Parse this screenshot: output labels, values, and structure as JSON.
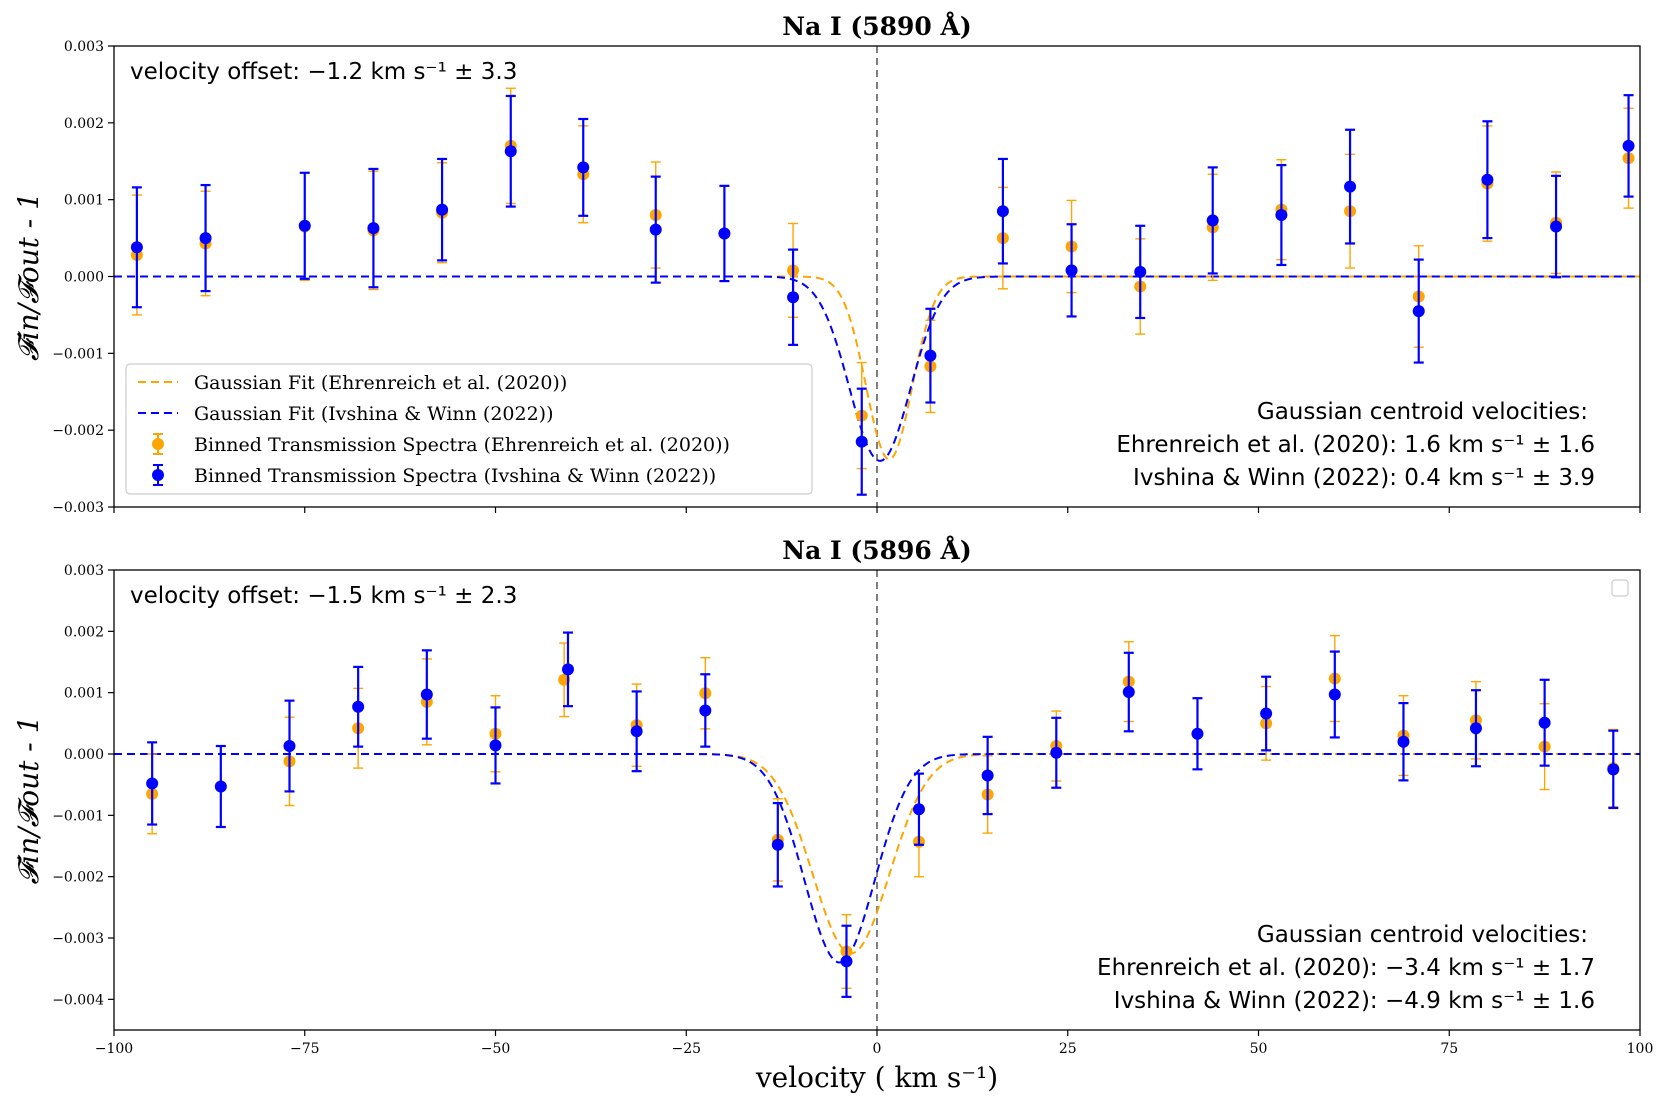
{
  "chart_data": [
    {
      "type": "scatter",
      "title": "Na I (5890 Å)",
      "xlabel": "velocity ( km s⁻¹)",
      "ylabel": "𝓕in/𝓕out - 1",
      "xlim": [
        -100,
        100
      ],
      "ylim": [
        -0.003,
        0.003
      ],
      "yticks": [
        0.003,
        0.002,
        0.001,
        0.0,
        -0.001,
        -0.002,
        -0.003
      ],
      "ytick_labels": [
        "0.003",
        "0.002",
        "0.001",
        "0.000",
        "−0.001",
        "−0.002",
        "−0.003"
      ],
      "xticks": [
        -100,
        -75,
        -50,
        -25,
        0,
        25,
        50,
        75,
        100
      ],
      "xtick_labels": [],
      "vline_x": 0,
      "velocity_offset_text": "velocity offset: −1.2 km s⁻¹ ± 3.3",
      "centroid_texts": [
        "Gaussian centroid velocities:",
        "Ehrenreich et al. (2020): 1.6 km s⁻¹ ± 1.6",
        "Ivshina & Winn (2022): 0.4 km s⁻¹ ± 3.9"
      ],
      "legend": {
        "position": "lower-left",
        "entries": [
          "Gaussian Fit (Ehrenreich et al. (2020))",
          "Gaussian Fit (Ivshina & Winn (2022))",
          "Binned Transmission Spectra (Ehrenreich et al. (2020))",
          "Binned Transmission Spectra (Ivshina & Winn (2022))"
        ]
      },
      "fits": [
        {
          "name": "Gaussian Fit (Ehrenreich et al. (2020))",
          "color": "#FFA500",
          "amplitude": -0.00238,
          "center": 1.6,
          "sigma": 3.0
        },
        {
          "name": "Gaussian Fit (Ivshina & Winn (2022))",
          "color": "#0000FF",
          "amplitude": -0.0024,
          "center": 0.4,
          "sigma": 4.0
        }
      ],
      "series": [
        {
          "name": "Binned Transmission Spectra (Ehrenreich et al. (2020))",
          "color": "#FFA500",
          "x": [
            -97,
            -88,
            -75,
            -66,
            -57,
            -48,
            -38.5,
            -29,
            -20,
            -11,
            -2,
            7,
            16.5,
            25.5,
            34.5,
            44,
            53,
            62,
            71,
            80,
            89,
            98.5
          ],
          "y": [
            0.00028,
            0.00043,
            0.00065,
            0.0006,
            0.00083,
            0.0017,
            0.00133,
            0.0008,
            0.00056,
            8e-05,
            -0.00181,
            -0.00117,
            0.0005,
            0.00039,
            -0.00013,
            0.00064,
            0.00087,
            0.00085,
            -0.00026,
            0.00121,
            0.0007,
            0.00154
          ],
          "err": [
            0.00078,
            0.00068,
            0.0007,
            0.00077,
            0.00065,
            0.00075,
            0.00063,
            0.00069,
            0.00062,
            0.00061,
            0.00069,
            0.0006,
            0.00066,
            0.0006,
            0.00062,
            0.00069,
            0.00065,
            0.00074,
            0.00066,
            0.00075,
            0.00066,
            0.00065
          ]
        },
        {
          "name": "Binned Transmission Spectra (Ivshina & Winn (2022))",
          "color": "#0000FF",
          "x": [
            -97,
            -88,
            -75,
            -66,
            -57,
            -48,
            -38.5,
            -29,
            -20,
            -11,
            -2,
            7,
            16.5,
            25.5,
            34.5,
            44,
            53,
            62,
            71,
            80,
            89,
            98.5
          ],
          "y": [
            0.00038,
            0.0005,
            0.00066,
            0.00063,
            0.00087,
            0.00163,
            0.00142,
            0.00061,
            0.00056,
            -0.00027,
            -0.00215,
            -0.00103,
            0.00085,
            8e-05,
            6e-05,
            0.00073,
            0.0008,
            0.00117,
            -0.00045,
            0.00126,
            0.00065,
            0.0017
          ],
          "err": [
            0.00078,
            0.00069,
            0.00069,
            0.00077,
            0.00066,
            0.00072,
            0.00063,
            0.00069,
            0.00062,
            0.00062,
            0.00069,
            0.00061,
            0.00068,
            0.0006,
            0.0006,
            0.00069,
            0.00065,
            0.00074,
            0.00067,
            0.00076,
            0.00066,
            0.00066
          ]
        }
      ]
    },
    {
      "type": "scatter",
      "title": "Na I (5896 Å)",
      "xlabel": "velocity ( km s⁻¹)",
      "ylabel": "𝓕in/𝓕out - 1",
      "xlim": [
        -100,
        100
      ],
      "ylim": [
        -0.0045,
        0.003
      ],
      "yticks": [
        0.003,
        0.002,
        0.001,
        0.0,
        -0.001,
        -0.002,
        -0.003,
        -0.004
      ],
      "ytick_labels": [
        "0.003",
        "0.002",
        "0.001",
        "0.000",
        "−0.001",
        "−0.002",
        "−0.003",
        "−0.004"
      ],
      "xticks": [
        -100,
        -75,
        -50,
        -25,
        0,
        25,
        50,
        75,
        100
      ],
      "xtick_labels": [
        "−100",
        "−75",
        "−50",
        "−25",
        "0",
        "25",
        "50",
        "75",
        "100"
      ],
      "vline_x": 0,
      "velocity_offset_text": "velocity offset: −1.5 km s⁻¹ ± 2.3",
      "centroid_texts": [
        "Gaussian centroid velocities:",
        "Ehrenreich et al. (2020): −3.4 km s⁻¹ ± 1.7",
        "Ivshina & Winn (2022): −4.9 km s⁻¹ ± 1.6"
      ],
      "legend": {
        "position": "upper-right",
        "entries": []
      },
      "fits": [
        {
          "name": "Gaussian Fit (Ehrenreich et al. (2020))",
          "color": "#FFA500",
          "amplitude": -0.00325,
          "center": -3.4,
          "sigma": 5.0
        },
        {
          "name": "Gaussian Fit (Ivshina & Winn (2022))",
          "color": "#0000FF",
          "amplitude": -0.0034,
          "center": -4.9,
          "sigma": 4.6
        }
      ],
      "series": [
        {
          "name": "Binned Transmission Spectra (Ehrenreich et al. (2020))",
          "color": "#FFA500",
          "x": [
            -95,
            -77,
            -68,
            -59,
            -50,
            -41,
            -31.5,
            -22.5,
            -13,
            -4,
            5.5,
            14.5,
            23.5,
            33,
            51,
            60,
            69,
            78.5,
            87.5,
            96.5
          ],
          "y": [
            -0.00065,
            -0.00012,
            0.00042,
            0.00085,
            0.00033,
            0.00121,
            0.00047,
            0.00099,
            -0.0014,
            -0.00322,
            -0.00143,
            -0.00066,
            0.00013,
            0.00118,
            0.0005,
            0.00123,
            0.0003,
            0.00055,
            0.00012,
            -0.00023
          ],
          "err": [
            0.00065,
            0.00072,
            0.00065,
            0.0007,
            0.00062,
            0.0006,
            0.00067,
            0.00058,
            0.00067,
            0.0006,
            0.00057,
            0.00063,
            0.00057,
            0.00065,
            0.0006,
            0.0007,
            0.00065,
            0.00063,
            0.0007,
            0.00063
          ]
        },
        {
          "name": "Binned Transmission Spectra (Ivshina & Winn (2022))",
          "color": "#0000FF",
          "x": [
            -95,
            -86,
            -77,
            -68,
            -59,
            -50,
            -40.5,
            -31.5,
            -22.5,
            -13,
            -4,
            5.5,
            14.5,
            23.5,
            33,
            42,
            51,
            60,
            69,
            78.5,
            87.5,
            96.5
          ],
          "y": [
            -0.00048,
            -0.00053,
            0.00013,
            0.00077,
            0.00097,
            0.00014,
            0.00138,
            0.00037,
            0.00071,
            -0.00148,
            -0.00338,
            -0.0009,
            -0.00035,
            2e-05,
            0.00101,
            0.00033,
            0.00066,
            0.00097,
            0.0002,
            0.00042,
            0.00051,
            -0.00025
          ],
          "err": [
            0.00067,
            0.00066,
            0.00074,
            0.00065,
            0.00072,
            0.00062,
            0.0006,
            0.00065,
            0.00059,
            0.00068,
            0.00058,
            0.00058,
            0.00063,
            0.00057,
            0.00064,
            0.00058,
            0.0006,
            0.0007,
            0.00063,
            0.00062,
            0.0007,
            0.00063
          ]
        }
      ]
    }
  ]
}
